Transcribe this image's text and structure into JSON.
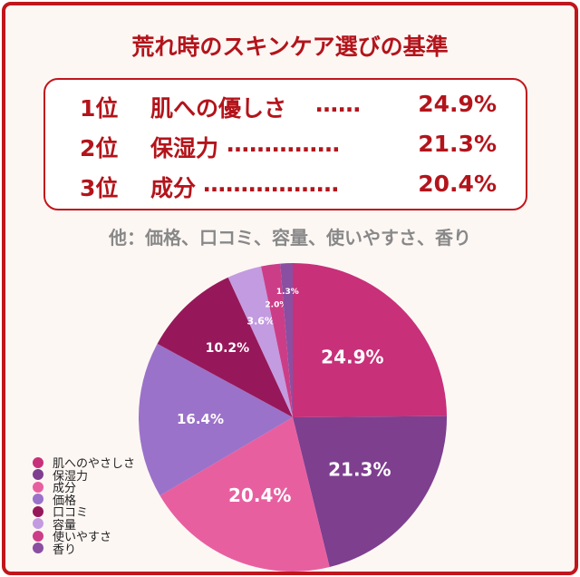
{
  "title": "荒れ時のスキンケア選びの基準",
  "ranking": [
    {
      "pos": "1位",
      "name": "肌への優しさ",
      "dots": "……",
      "pct": "24.9%"
    },
    {
      "pos": "2位",
      "name": "保湿力",
      "dots": "……………",
      "pct": "21.3%"
    },
    {
      "pos": "3位",
      "name": "成分",
      "dots": "………………",
      "pct": "20.4%"
    }
  ],
  "others": "他：価格、口コミ、容量、使いやすさ、香り",
  "chart_data": {
    "type": "pie",
    "legend_position": "bottom-left",
    "categories": [
      "肌へのやさしさ",
      "保湿力",
      "成分",
      "価格",
      "口コミ",
      "容量",
      "使いやすさ",
      "香り"
    ],
    "values": [
      24.9,
      21.3,
      20.4,
      16.4,
      10.2,
      3.6,
      2.0,
      1.3
    ],
    "labels": [
      "24.9%",
      "21.3%",
      "20.4%",
      "16.4%",
      "10.2%",
      "3.6%",
      "2.0%",
      "1.3%"
    ],
    "colors": [
      "#c8307a",
      "#7e3f8f",
      "#e85fa0",
      "#9b72c9",
      "#96185a",
      "#c39be0",
      "#cc3d88",
      "#8a4fa0"
    ]
  }
}
